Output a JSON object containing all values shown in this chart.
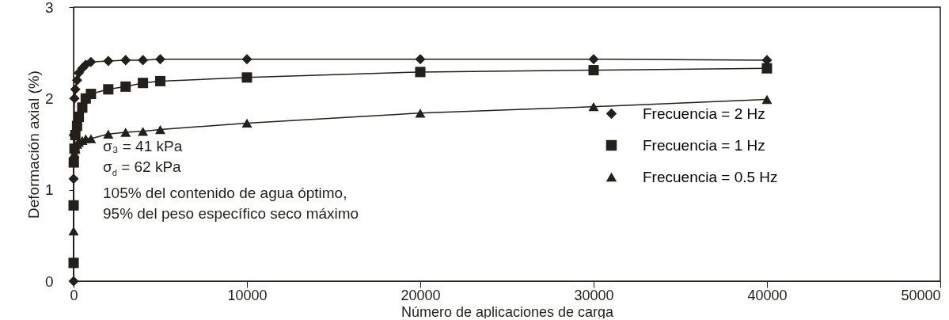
{
  "chart_data": {
    "type": "line",
    "xlabel": "Número de aplicaciones de carga",
    "ylabel": "Deformación axial (%)",
    "xlim": [
      0,
      50000
    ],
    "xticks": [
      0,
      10000,
      20000,
      30000,
      40000,
      50000
    ],
    "ylim": [
      0,
      3
    ],
    "yticks": [
      0,
      1,
      2,
      3
    ],
    "grid": false,
    "legend": "right",
    "series": [
      {
        "name": "Frecuencia = 2 Hz",
        "color": "#231f1a",
        "marker": "diamond",
        "x": [
          0,
          1,
          10,
          50,
          100,
          200,
          300,
          500,
          700,
          1000,
          2000,
          3000,
          4000,
          5000,
          10000,
          20000,
          30000,
          40000
        ],
        "values": [
          0,
          1.12,
          1.6,
          2.0,
          2.1,
          2.2,
          2.28,
          2.33,
          2.37,
          2.4,
          2.41,
          2.42,
          2.42,
          2.43,
          2.43,
          2.43,
          2.43,
          2.42
        ]
      },
      {
        "name": "Frecuencia = 1 Hz",
        "color": "#231f1a",
        "marker": "square",
        "x": [
          0,
          1,
          10,
          50,
          100,
          200,
          300,
          500,
          700,
          1000,
          2000,
          3000,
          4000,
          5000,
          10000,
          20000,
          30000,
          40000
        ],
        "values": [
          0.2,
          0.83,
          1.3,
          1.45,
          1.6,
          1.7,
          1.8,
          1.9,
          2.0,
          2.05,
          2.1,
          2.13,
          2.17,
          2.19,
          2.23,
          2.29,
          2.31,
          2.33
        ]
      },
      {
        "name": "Frecuencia = 0.5 Hz",
        "color": "#231f1a",
        "marker": "triangle",
        "x": [
          0,
          10,
          50,
          100,
          200,
          300,
          500,
          700,
          1000,
          2000,
          3000,
          4000,
          5000,
          10000,
          20000,
          30000,
          40000
        ],
        "values": [
          0.55,
          1.3,
          1.4,
          1.45,
          1.5,
          1.52,
          1.54,
          1.56,
          1.56,
          1.61,
          1.63,
          1.64,
          1.66,
          1.73,
          1.84,
          1.91,
          1.99
        ]
      }
    ],
    "annotations": [
      "σ₃ = 41 kPa",
      "σ$_{d}$ = 62 kPa",
      "105% del contenido de agua óptimo,",
      "95% del peso específico seco máximo"
    ]
  }
}
